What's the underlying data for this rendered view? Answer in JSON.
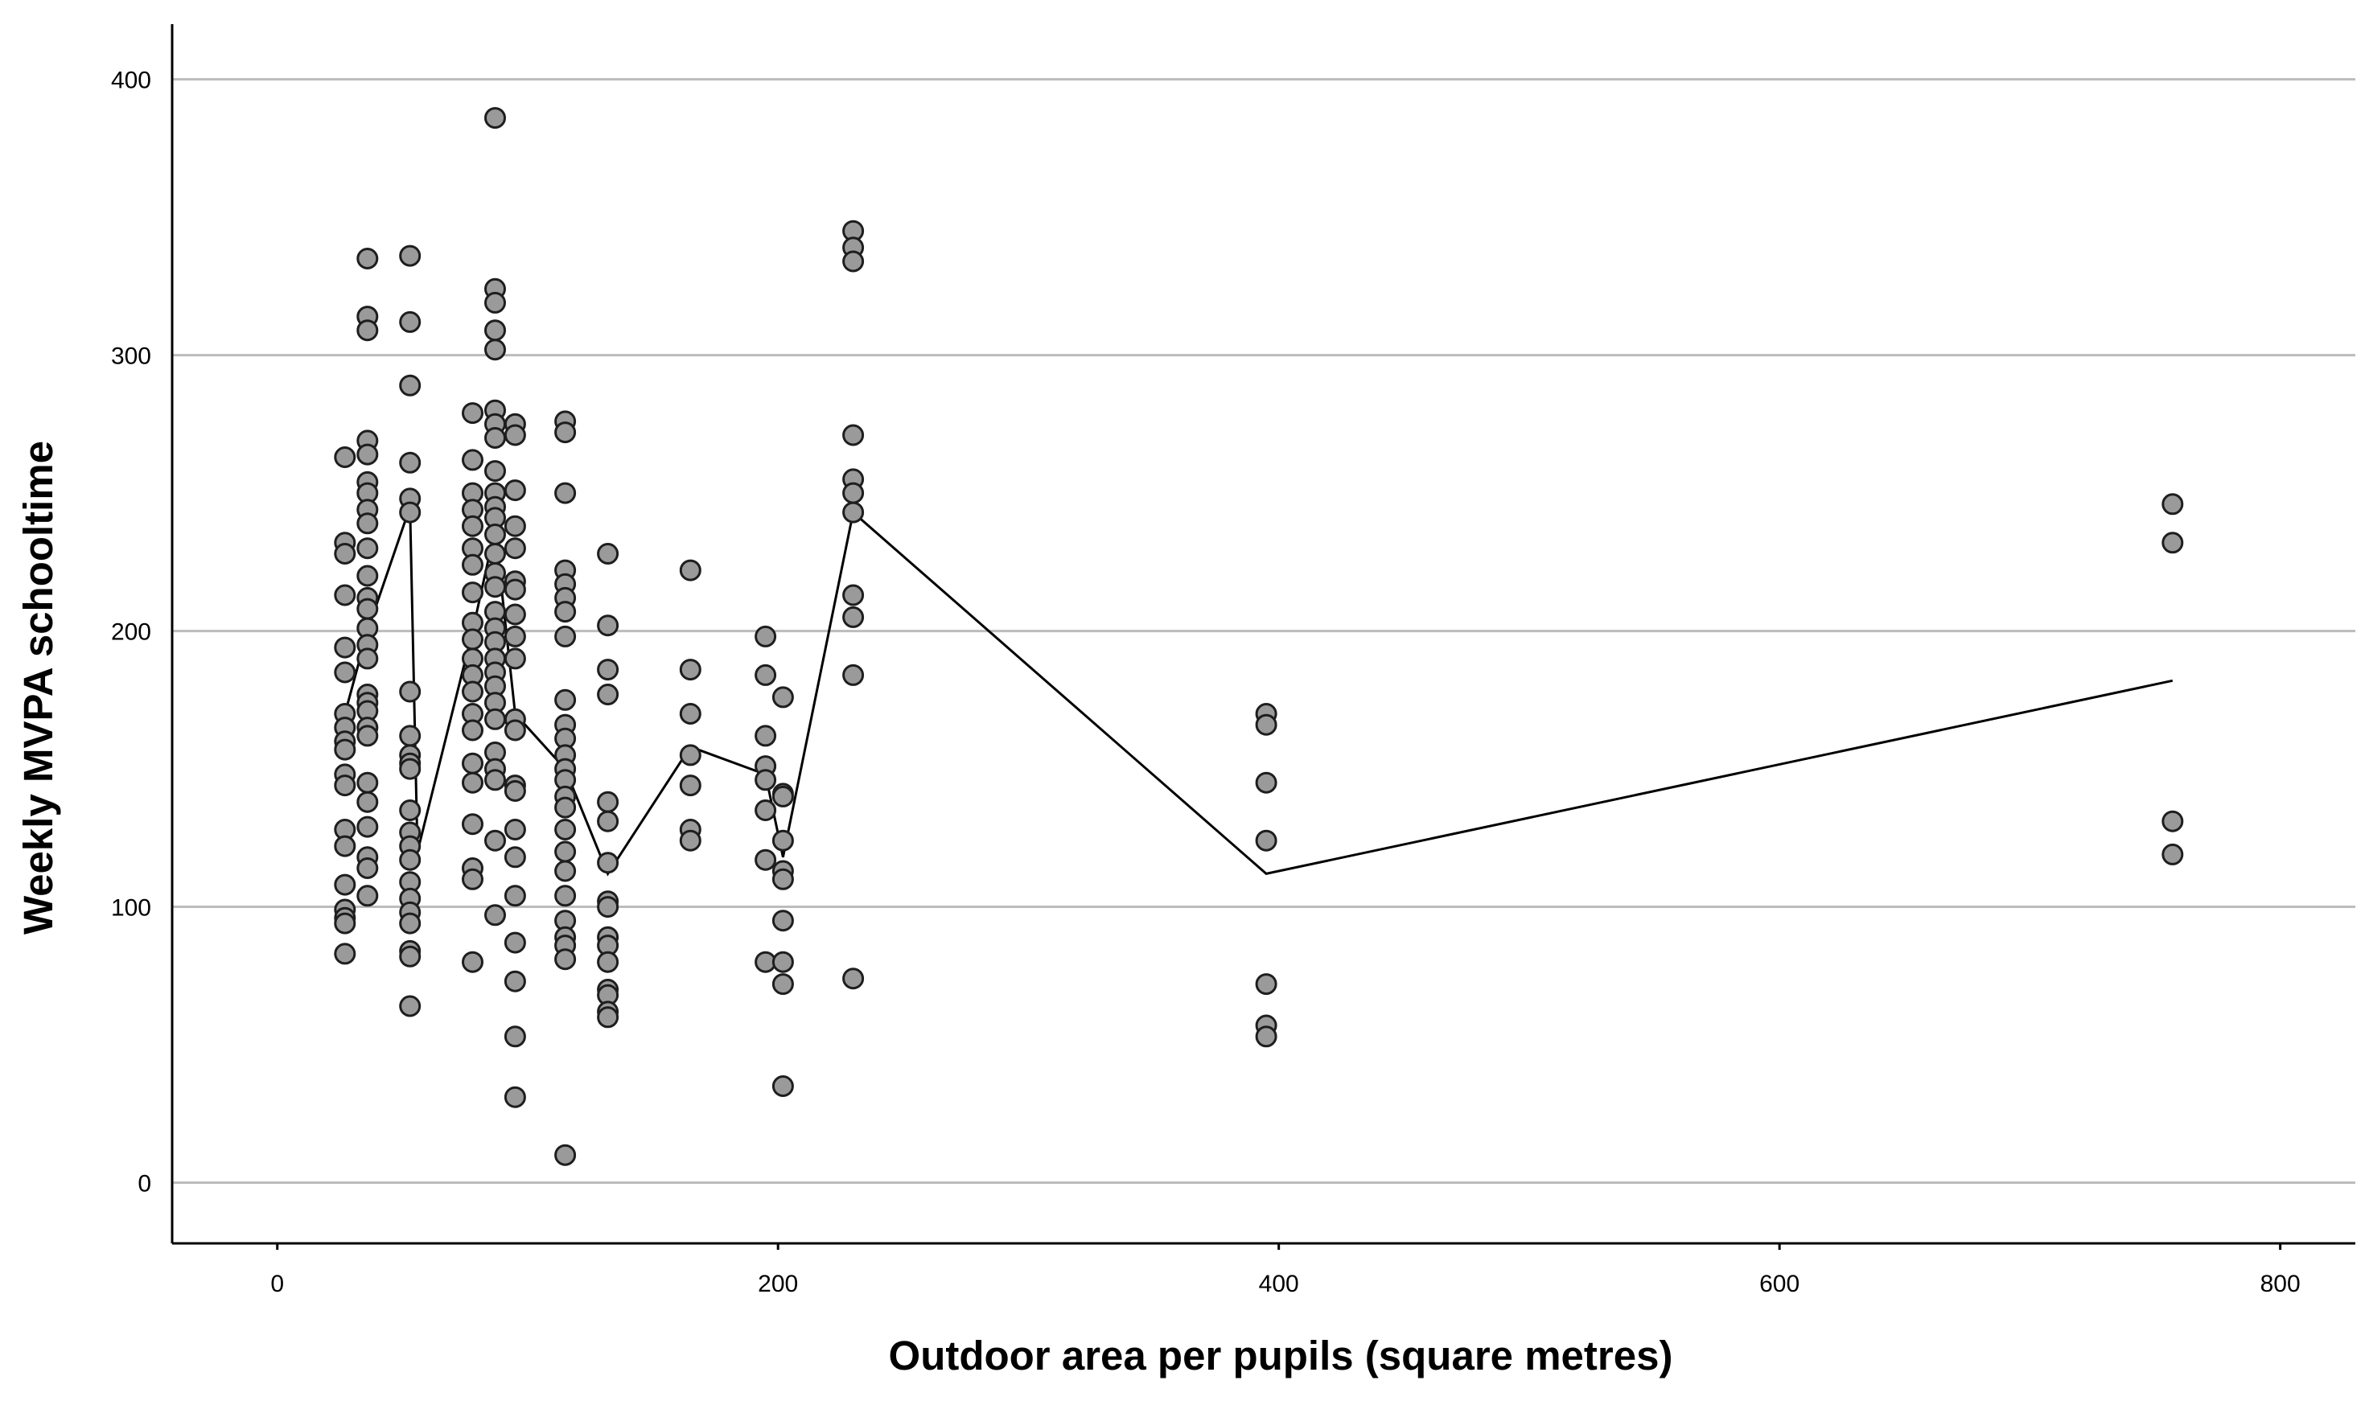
{
  "colors": {
    "background": "#ffffff",
    "grid": "#bcbcbc",
    "axis": "#000000",
    "point_fill": "#9a9a9a",
    "point_stroke": "#1e1e1e",
    "line": "#000000"
  },
  "chart_data": {
    "type": "scatter",
    "title": "",
    "xlabel": "Outdoor area per pupils (square metres)",
    "ylabel": "Weekly MVPA schooltime",
    "xlim": [
      -42,
      830
    ],
    "ylim": [
      -22,
      420
    ],
    "x_ticks": [
      0,
      200,
      400,
      600,
      800
    ],
    "y_ticks": [
      0,
      100,
      200,
      300,
      400
    ],
    "grid": "horizontal",
    "points": [
      {
        "x": 27,
        "ys": [
          263,
          232,
          228,
          213,
          194,
          185,
          170,
          165,
          160,
          157,
          148,
          144,
          128,
          122,
          108,
          99,
          96,
          94,
          83
        ]
      },
      {
        "x": 36,
        "ys": [
          335,
          314,
          309,
          269,
          264,
          254,
          250,
          244,
          239,
          230,
          220,
          212,
          208,
          201,
          195,
          190,
          177,
          174,
          171,
          165,
          162,
          145,
          138,
          129,
          118,
          114,
          104
        ]
      },
      {
        "x": 53,
        "ys": [
          336,
          312,
          289,
          261,
          248,
          243,
          178,
          162,
          155,
          152,
          150,
          135,
          127,
          122,
          117,
          109,
          103,
          98,
          94,
          84,
          82,
          64
        ]
      },
      {
        "x": 78,
        "ys": [
          279,
          262,
          250,
          244,
          238,
          230,
          224,
          214,
          203,
          197,
          190,
          184,
          178,
          170,
          164,
          152,
          145,
          130,
          114,
          110,
          80
        ]
      },
      {
        "x": 87,
        "ys": [
          386,
          324,
          319,
          309,
          302,
          280,
          275,
          270,
          258,
          250,
          245,
          241,
          235,
          228,
          221,
          216,
          207,
          201,
          196,
          190,
          185,
          180,
          174,
          168,
          156,
          150,
          146,
          124,
          97
        ]
      },
      {
        "x": 95,
        "ys": [
          275,
          271,
          251,
          238,
          230,
          218,
          215,
          206,
          198,
          190,
          168,
          164,
          144,
          142,
          128,
          118,
          104,
          87,
          73,
          53,
          31
        ]
      },
      {
        "x": 115,
        "ys": [
          276,
          272,
          250,
          222,
          217,
          212,
          207,
          198,
          175,
          166,
          161,
          155,
          150,
          146,
          140,
          136,
          128,
          120,
          113,
          104,
          95,
          89,
          86,
          81,
          10
        ]
      },
      {
        "x": 132,
        "ys": [
          228,
          202,
          186,
          177,
          138,
          131,
          116,
          102,
          100,
          89,
          86,
          80,
          70,
          68,
          62,
          60
        ]
      },
      {
        "x": 165,
        "ys": [
          222,
          186,
          170,
          155,
          144,
          128,
          124
        ]
      },
      {
        "x": 195,
        "ys": [
          198,
          184,
          162,
          151,
          146,
          135,
          117,
          80
        ]
      },
      {
        "x": 202,
        "ys": [
          176,
          141,
          140,
          124,
          113,
          110,
          95,
          80,
          72,
          35
        ]
      },
      {
        "x": 230,
        "ys": [
          345,
          339,
          334,
          271,
          255,
          250,
          243,
          213,
          205,
          184,
          74
        ]
      },
      {
        "x": 395,
        "ys": [
          170,
          166,
          145,
          124,
          72,
          57,
          53
        ]
      },
      {
        "x": 757,
        "ys": [
          246,
          232,
          131,
          119
        ]
      }
    ],
    "line": {
      "x": [
        27,
        36,
        53,
        56,
        78,
        87,
        95,
        115,
        132,
        165,
        195,
        202,
        230,
        395,
        757
      ],
      "y": [
        170,
        200,
        245,
        120,
        200,
        237,
        170,
        150,
        112,
        158,
        148,
        118,
        243,
        112,
        182
      ]
    }
  }
}
